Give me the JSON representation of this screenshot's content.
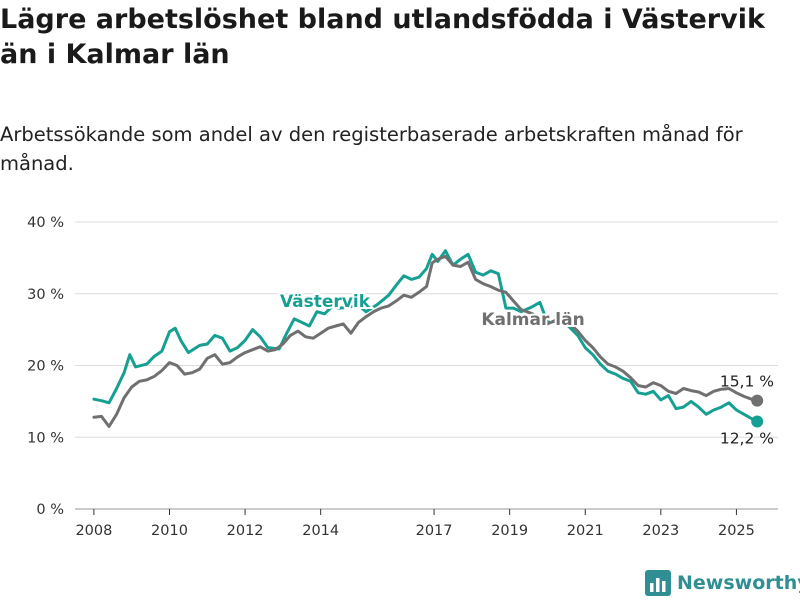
{
  "header": {
    "title": "Lägre arbetslöshet bland utlandsfödda i Västervik än i Kalmar län",
    "subtitle": "Arbetssökande som andel av den registerbaserade arbetskraften månad för månad."
  },
  "brand": {
    "name": "Newsworthy",
    "icon": "bar-chart-logo-icon",
    "color": "#2f8f94"
  },
  "chart_data": {
    "type": "line",
    "ylim": [
      0,
      40
    ],
    "yticks": [
      0,
      10,
      20,
      30,
      40
    ],
    "ytick_labels": [
      "0 %",
      "10 %",
      "20 %",
      "30 %",
      "40 %"
    ],
    "xlim": [
      2007.5,
      2026.1
    ],
    "xticks": [
      2008,
      2010,
      2012,
      2014,
      2017,
      2019,
      2021,
      2023,
      2025
    ],
    "xtick_labels": [
      "2008",
      "2010",
      "2012",
      "2014",
      "2017",
      "2019",
      "2021",
      "2023",
      "2025"
    ],
    "grid": true,
    "series": [
      {
        "name": "Västervik",
        "color": "#16a093",
        "end_label": "12,2 %",
        "points": [
          [
            2008.0,
            15.3
          ],
          [
            2008.2,
            15.1
          ],
          [
            2008.4,
            14.8
          ],
          [
            2008.6,
            16.8
          ],
          [
            2008.8,
            19.0
          ],
          [
            2008.95,
            21.5
          ],
          [
            2009.1,
            19.8
          ],
          [
            2009.4,
            20.2
          ],
          [
            2009.6,
            21.3
          ],
          [
            2009.8,
            22.0
          ],
          [
            2010.0,
            24.7
          ],
          [
            2010.15,
            25.2
          ],
          [
            2010.3,
            23.5
          ],
          [
            2010.5,
            21.8
          ],
          [
            2010.8,
            22.8
          ],
          [
            2011.0,
            23.0
          ],
          [
            2011.2,
            24.2
          ],
          [
            2011.4,
            23.8
          ],
          [
            2011.6,
            22.0
          ],
          [
            2011.8,
            22.5
          ],
          [
            2012.0,
            23.5
          ],
          [
            2012.2,
            25.0
          ],
          [
            2012.4,
            24.0
          ],
          [
            2012.6,
            22.5
          ],
          [
            2012.9,
            22.3
          ],
          [
            2013.1,
            24.5
          ],
          [
            2013.3,
            26.5
          ],
          [
            2013.5,
            26.0
          ],
          [
            2013.7,
            25.5
          ],
          [
            2013.9,
            27.5
          ],
          [
            2014.1,
            27.2
          ],
          [
            2014.3,
            28.2
          ],
          [
            2014.5,
            28.0
          ],
          [
            2014.8,
            28.2
          ],
          [
            2015.0,
            28.4
          ],
          [
            2015.2,
            27.5
          ],
          [
            2015.5,
            28.5
          ],
          [
            2015.8,
            29.8
          ],
          [
            2016.0,
            31.2
          ],
          [
            2016.2,
            32.5
          ],
          [
            2016.4,
            32.0
          ],
          [
            2016.6,
            32.3
          ],
          [
            2016.8,
            33.5
          ],
          [
            2016.95,
            35.5
          ],
          [
            2017.1,
            34.5
          ],
          [
            2017.3,
            36.0
          ],
          [
            2017.5,
            34.0
          ],
          [
            2017.7,
            34.8
          ],
          [
            2017.9,
            35.5
          ],
          [
            2018.1,
            33.0
          ],
          [
            2018.3,
            32.6
          ],
          [
            2018.5,
            33.2
          ],
          [
            2018.7,
            32.8
          ],
          [
            2018.9,
            28.0
          ],
          [
            2019.1,
            28.0
          ],
          [
            2019.3,
            27.5
          ],
          [
            2019.6,
            28.2
          ],
          [
            2019.8,
            28.8
          ],
          [
            2020.0,
            26.0
          ],
          [
            2020.3,
            26.2
          ],
          [
            2020.5,
            25.8
          ],
          [
            2020.8,
            24.2
          ],
          [
            2021.0,
            22.5
          ],
          [
            2021.2,
            21.5
          ],
          [
            2021.4,
            20.2
          ],
          [
            2021.6,
            19.2
          ],
          [
            2021.8,
            18.8
          ],
          [
            2022.0,
            18.2
          ],
          [
            2022.2,
            17.8
          ],
          [
            2022.4,
            16.2
          ],
          [
            2022.6,
            16.0
          ],
          [
            2022.8,
            16.4
          ],
          [
            2023.0,
            15.2
          ],
          [
            2023.2,
            15.8
          ],
          [
            2023.4,
            14.0
          ],
          [
            2023.6,
            14.2
          ],
          [
            2023.8,
            15.0
          ],
          [
            2024.0,
            14.2
          ],
          [
            2024.2,
            13.2
          ],
          [
            2024.4,
            13.8
          ],
          [
            2024.6,
            14.2
          ],
          [
            2024.8,
            14.8
          ],
          [
            2025.0,
            13.8
          ],
          [
            2025.2,
            13.2
          ],
          [
            2025.4,
            12.6
          ],
          [
            2025.55,
            12.2
          ]
        ]
      },
      {
        "name": "Kalmar län",
        "color": "#707070",
        "end_label": "15,1 %",
        "points": [
          [
            2008.0,
            12.8
          ],
          [
            2008.2,
            12.9
          ],
          [
            2008.4,
            11.5
          ],
          [
            2008.6,
            13.2
          ],
          [
            2008.8,
            15.5
          ],
          [
            2009.0,
            17.0
          ],
          [
            2009.2,
            17.8
          ],
          [
            2009.4,
            18.0
          ],
          [
            2009.6,
            18.5
          ],
          [
            2009.8,
            19.3
          ],
          [
            2010.0,
            20.4
          ],
          [
            2010.2,
            20.0
          ],
          [
            2010.4,
            18.8
          ],
          [
            2010.6,
            19.0
          ],
          [
            2010.8,
            19.5
          ],
          [
            2011.0,
            21.0
          ],
          [
            2011.2,
            21.5
          ],
          [
            2011.4,
            20.2
          ],
          [
            2011.6,
            20.4
          ],
          [
            2011.8,
            21.2
          ],
          [
            2012.0,
            21.8
          ],
          [
            2012.2,
            22.2
          ],
          [
            2012.4,
            22.6
          ],
          [
            2012.6,
            22.0
          ],
          [
            2012.8,
            22.2
          ],
          [
            2013.0,
            23.0
          ],
          [
            2013.2,
            24.2
          ],
          [
            2013.4,
            24.8
          ],
          [
            2013.6,
            24.0
          ],
          [
            2013.8,
            23.8
          ],
          [
            2014.0,
            24.5
          ],
          [
            2014.2,
            25.2
          ],
          [
            2014.4,
            25.5
          ],
          [
            2014.6,
            25.8
          ],
          [
            2014.8,
            24.5
          ],
          [
            2015.0,
            26.0
          ],
          [
            2015.2,
            26.8
          ],
          [
            2015.4,
            27.5
          ],
          [
            2015.6,
            28.0
          ],
          [
            2015.8,
            28.3
          ],
          [
            2016.0,
            29.0
          ],
          [
            2016.2,
            29.8
          ],
          [
            2016.4,
            29.5
          ],
          [
            2016.6,
            30.2
          ],
          [
            2016.8,
            31.0
          ],
          [
            2016.95,
            34.3
          ],
          [
            2017.1,
            34.8
          ],
          [
            2017.3,
            35.2
          ],
          [
            2017.5,
            34.0
          ],
          [
            2017.7,
            33.8
          ],
          [
            2017.9,
            34.4
          ],
          [
            2018.1,
            32.0
          ],
          [
            2018.3,
            31.4
          ],
          [
            2018.5,
            31.0
          ],
          [
            2018.7,
            30.5
          ],
          [
            2018.9,
            30.2
          ],
          [
            2019.1,
            29.0
          ],
          [
            2019.3,
            27.8
          ],
          [
            2019.6,
            27.2
          ],
          [
            2019.8,
            26.5
          ],
          [
            2020.0,
            25.8
          ],
          [
            2020.3,
            26.5
          ],
          [
            2020.6,
            25.8
          ],
          [
            2020.8,
            24.8
          ],
          [
            2021.0,
            23.5
          ],
          [
            2021.2,
            22.5
          ],
          [
            2021.4,
            21.2
          ],
          [
            2021.6,
            20.2
          ],
          [
            2021.8,
            19.8
          ],
          [
            2022.0,
            19.2
          ],
          [
            2022.2,
            18.3
          ],
          [
            2022.4,
            17.2
          ],
          [
            2022.6,
            17.0
          ],
          [
            2022.8,
            17.6
          ],
          [
            2023.0,
            17.2
          ],
          [
            2023.2,
            16.4
          ],
          [
            2023.4,
            16.1
          ],
          [
            2023.6,
            16.8
          ],
          [
            2023.8,
            16.5
          ],
          [
            2024.0,
            16.3
          ],
          [
            2024.2,
            15.8
          ],
          [
            2024.4,
            16.4
          ],
          [
            2024.6,
            16.7
          ],
          [
            2024.8,
            16.8
          ],
          [
            2025.0,
            16.2
          ],
          [
            2025.2,
            15.7
          ],
          [
            2025.4,
            15.3
          ],
          [
            2025.55,
            15.1
          ]
        ]
      }
    ]
  }
}
